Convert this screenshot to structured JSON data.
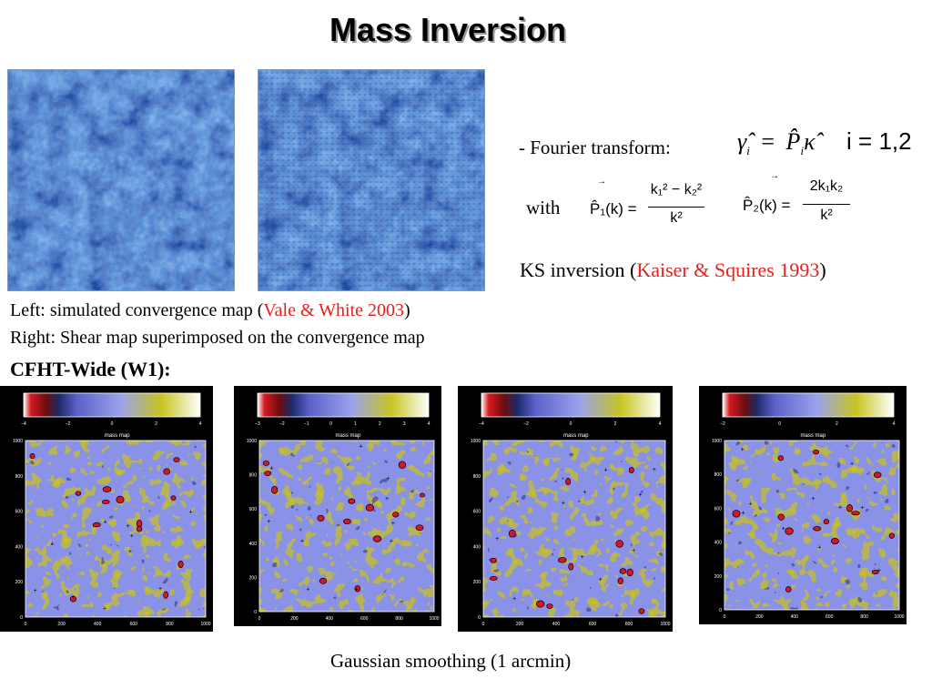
{
  "slide": {
    "title": "Mass Inversion",
    "fourier_label": "- Fourier transform:",
    "with_label": "with",
    "ks_prefix": "KS inversion (",
    "ks_ref": "Kaiser & Squires 1993",
    "ks_suffix": ")",
    "left_prefix": "Left: simulated convergence map (",
    "left_ref": "Vale & White 2003",
    "left_suffix": ")",
    "right_caption": "Right: Shear map superimposed on the convergence map",
    "cfht_heading": "CFHT-Wide (W1):",
    "bottom_caption": "Gaussian smoothing (1 arcmin)"
  },
  "equations": {
    "fourier_lhs": "γ̂",
    "fourier_lhs_sub": "i",
    "fourier_eq": "=",
    "fourier_rhs": "P̂",
    "fourier_rhs_sub": "i",
    "fourier_kappa": "κ̂",
    "index": "i = 1,2",
    "p1_lhs": "P̂₁(k) =",
    "p1_num": "k₁² − k₂²",
    "p1_den": "k²",
    "p2_lhs": "P̂₂(k) =",
    "p2_num": "2k₁k₂",
    "p2_den": "k²"
  },
  "panels": [
    {
      "map_title": "mass map",
      "colorbar_ticks": [
        "−4",
        "−2",
        "0",
        "2",
        "4"
      ],
      "y_ticks": [
        "1000",
        "800",
        "600",
        "400",
        "200",
        "0"
      ],
      "x_ticks": [
        "0",
        "200",
        "400",
        "600",
        "800",
        "1000"
      ]
    },
    {
      "map_title": "mass map",
      "colorbar_ticks": [
        "−3",
        "−2",
        "−1",
        "0",
        "1",
        "2",
        "3",
        "4"
      ],
      "y_ticks": [
        "1000",
        "800",
        "600",
        "400",
        "200",
        "0"
      ],
      "x_ticks": [
        "0",
        "200",
        "400",
        "600",
        "800",
        "1000"
      ]
    },
    {
      "map_title": "mass map",
      "colorbar_ticks": [
        "−4",
        "−2",
        "0",
        "2",
        "4"
      ],
      "y_ticks": [
        "1000",
        "800",
        "600",
        "400",
        "200",
        "0"
      ],
      "x_ticks": [
        "0",
        "200",
        "400",
        "600",
        "800",
        "1000"
      ]
    },
    {
      "map_title": "mass map",
      "colorbar_ticks": [
        "−2",
        "0",
        "2",
        "4"
      ],
      "y_ticks": [
        "1000",
        "800",
        "600",
        "400",
        "200",
        "0"
      ],
      "x_ticks": [
        "0",
        "200",
        "400",
        "600",
        "800",
        "1000"
      ]
    }
  ],
  "colors": {
    "reference_red": "#e8201a",
    "convergence_light": "#bcd9f7",
    "convergence_dark": "#1a3f9a",
    "mass_map_blue": "#8a92e8",
    "mass_map_yellow": "#c9c21e",
    "mass_map_red": "#d21828"
  }
}
